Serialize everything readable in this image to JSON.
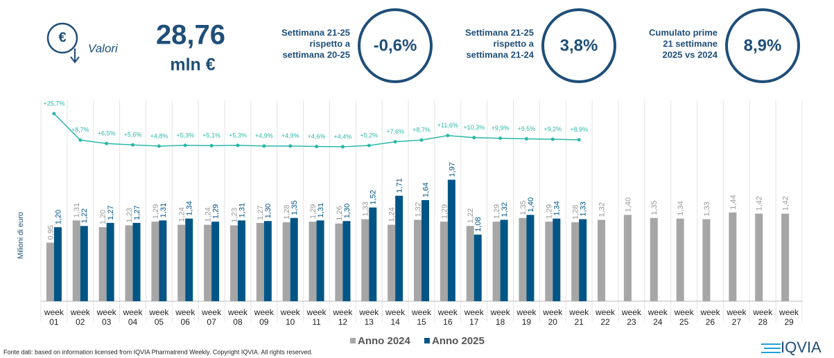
{
  "header": {
    "icon_symbol": "€",
    "icon_label": "Valori",
    "total_value": "28,76",
    "total_unit": "mln €",
    "kpis": [
      {
        "label_lines": [
          "Settimana 21-25",
          "rispetto a",
          "settimana 20-25"
        ],
        "value": "-0,6%"
      },
      {
        "label_lines": [
          "Settimana 21-25",
          "rispetto a",
          "settimana 21-24"
        ],
        "value": "3,8%"
      },
      {
        "label_lines": [
          "Cumulato prime",
          "21 settimane",
          "2025 vs 2024"
        ],
        "value": "8,9%"
      }
    ]
  },
  "chart_data": {
    "type": "bar",
    "y_label": "Milioni di euro",
    "categories": [
      "week 01",
      "week 02",
      "week 03",
      "week 04",
      "week 05",
      "week 06",
      "week 07",
      "week 08",
      "week 09",
      "week 10",
      "week 11",
      "week 12",
      "week 13",
      "week 14",
      "week 15",
      "week 16",
      "week 17",
      "week 18",
      "week 19",
      "week 20",
      "week 21",
      "week 22",
      "week 23",
      "week 24",
      "week 25",
      "week 26",
      "week 27",
      "week 28",
      "week 29"
    ],
    "ylim": [
      0,
      3.2
    ],
    "y2lim": [
      -95,
      32
    ],
    "legend": "bottom",
    "series": [
      {
        "name": "Anno 2024",
        "color": "#a6a6a6",
        "values": [
          0.95,
          1.31,
          1.2,
          1.23,
          1.29,
          1.24,
          1.24,
          1.23,
          1.27,
          1.28,
          1.29,
          1.26,
          1.33,
          1.24,
          1.32,
          1.29,
          1.22,
          1.29,
          1.35,
          1.29,
          1.28,
          1.32,
          1.4,
          1.35,
          1.34,
          1.33,
          1.44,
          1.42,
          1.42
        ],
        "value_labels": [
          "0,95",
          "1,31",
          "1,20",
          "1,23",
          "1,29",
          "1,24",
          "1,24",
          "1,23",
          "1,27",
          "1,28",
          "1,29",
          "1,26",
          "1,33",
          "1,24",
          "1,32",
          "1,29",
          "1,22",
          "1,29",
          "1,35",
          "1,29",
          "1,28",
          "1,32",
          "1,40",
          "1,35",
          "1,34",
          "1,33",
          "1,44",
          "1,42",
          "1,42"
        ]
      },
      {
        "name": "Anno 2025",
        "color": "#005587",
        "values": [
          1.2,
          1.22,
          1.27,
          1.27,
          1.31,
          1.34,
          1.29,
          1.31,
          1.3,
          1.35,
          1.31,
          1.3,
          1.52,
          1.71,
          1.64,
          1.97,
          1.08,
          1.32,
          1.4,
          1.34,
          1.33,
          null,
          null,
          null,
          null,
          null,
          null,
          null,
          null
        ],
        "value_labels": [
          "1,20",
          "1,22",
          "1,27",
          "1,27",
          "1,31",
          "1,34",
          "1,29",
          "1,31",
          "1,30",
          "1,35",
          "1,31",
          "1,30",
          "1,52",
          "1,71",
          "1,64",
          "1,97",
          "1,08",
          "1,32",
          "1,40",
          "1,34",
          "1,33",
          null,
          null,
          null,
          null,
          null,
          null,
          null,
          null
        ]
      },
      {
        "type": "line",
        "axis": "y2",
        "color": "#2ab7a9",
        "values": [
          25.7,
          8.7,
          6.5,
          5.6,
          4.8,
          5.3,
          5.1,
          5.3,
          4.9,
          4.9,
          4.6,
          4.4,
          5.2,
          7.6,
          8.7,
          11.6,
          10.3,
          9.9,
          9.5,
          9.2,
          8.9,
          null,
          null,
          null,
          null,
          null,
          null,
          null,
          null
        ],
        "value_labels": [
          "+25,7%",
          "+8,7%",
          "+6,5%",
          "+5,6%",
          "+4,8%",
          "+5,3%",
          "+5,1%",
          "+5,3%",
          "+4,9%",
          "+4,9%",
          "+4,6%",
          "+4,4%",
          "+5,2%",
          "+7,6%",
          "+8,7%",
          "+11,6%",
          "+10,3%",
          "+9,9%",
          "+9,5%",
          "+9,2%",
          "+8,9%",
          null,
          null,
          null,
          null,
          null,
          null,
          null,
          null
        ]
      }
    ]
  },
  "footer": {
    "source": "Fonte dati: based on information licensed from IQVIA Pharmatrend Weekly. Copyright IQVIA. All rights reserved.",
    "logo": "IQVIA"
  }
}
